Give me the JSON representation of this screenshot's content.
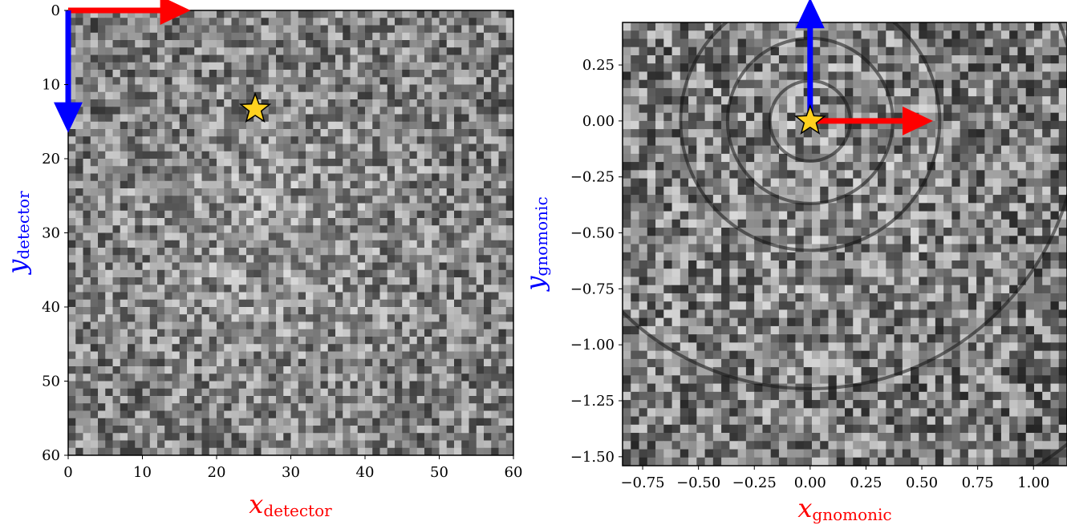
{
  "chart_data": [
    {
      "type": "heatmap",
      "title": "",
      "xlabel": "x",
      "xlabel_sub": "detector",
      "ylabel": "y",
      "ylabel_sub": "detector",
      "xlim": [
        0,
        60
      ],
      "ylim": [
        60,
        0
      ],
      "y_inverted": true,
      "grid": false,
      "colormap": "gray",
      "xticks": [
        0,
        10,
        20,
        30,
        40,
        50,
        60
      ],
      "yticks": [
        0,
        10,
        20,
        30,
        40,
        50,
        60
      ],
      "xtick_labels": [
        "0",
        "10",
        "20",
        "30",
        "40",
        "50",
        "60"
      ],
      "ytick_labels": [
        "0",
        "10",
        "20",
        "30",
        "40",
        "50",
        "60"
      ],
      "pattern_center": {
        "x": 25.2,
        "y": 13.3
      },
      "arrows": [
        {
          "axis": "x",
          "from": [
            0,
            0
          ],
          "to": [
            16.5,
            0
          ],
          "color": "#ff0000"
        },
        {
          "axis": "y",
          "from": [
            0,
            0
          ],
          "to": [
            0,
            16.5
          ],
          "color": "#0000ff"
        }
      ],
      "xlabel_color": "#ff0000",
      "ylabel_color": "#0000ff"
    },
    {
      "type": "heatmap",
      "title": "",
      "xlabel": "x",
      "xlabel_sub": "gnomonic",
      "ylabel": "y",
      "ylabel_sub": "gnomonic",
      "xlim": [
        -0.84,
        1.15
      ],
      "ylim": [
        -1.54,
        0.44
      ],
      "grid": false,
      "colormap": "gray",
      "xticks": [
        -0.75,
        -0.5,
        -0.25,
        0.0,
        0.25,
        0.5,
        0.75,
        1.0
      ],
      "xtick_labels": [
        "−0.75",
        "−0.50",
        "−0.25",
        "0.00",
        "0.25",
        "0.50",
        "0.75",
        "1.00"
      ],
      "yticks": [
        0.25,
        0.0,
        -0.25,
        -0.5,
        -0.75,
        -1.0,
        -1.25,
        -1.5
      ],
      "ytick_labels": [
        "0.25",
        "0.00",
        "−0.25",
        "−0.50",
        "−0.75",
        "−1.00",
        "−1.25",
        "−1.50"
      ],
      "pattern_center": {
        "x": 0.0,
        "y": 0.0
      },
      "circles_radii": [
        0.18,
        0.37,
        0.58,
        1.2,
        1.85
      ],
      "arrows": [
        {
          "axis": "x",
          "from": [
            0,
            0
          ],
          "to": [
            0.55,
            0
          ],
          "color": "#ff0000"
        },
        {
          "axis": "y",
          "from": [
            0,
            0
          ],
          "to": [
            0,
            0.55
          ],
          "color": "#0000ff"
        }
      ],
      "xlabel_color": "#ff0000",
      "ylabel_color": "#0000ff"
    }
  ]
}
